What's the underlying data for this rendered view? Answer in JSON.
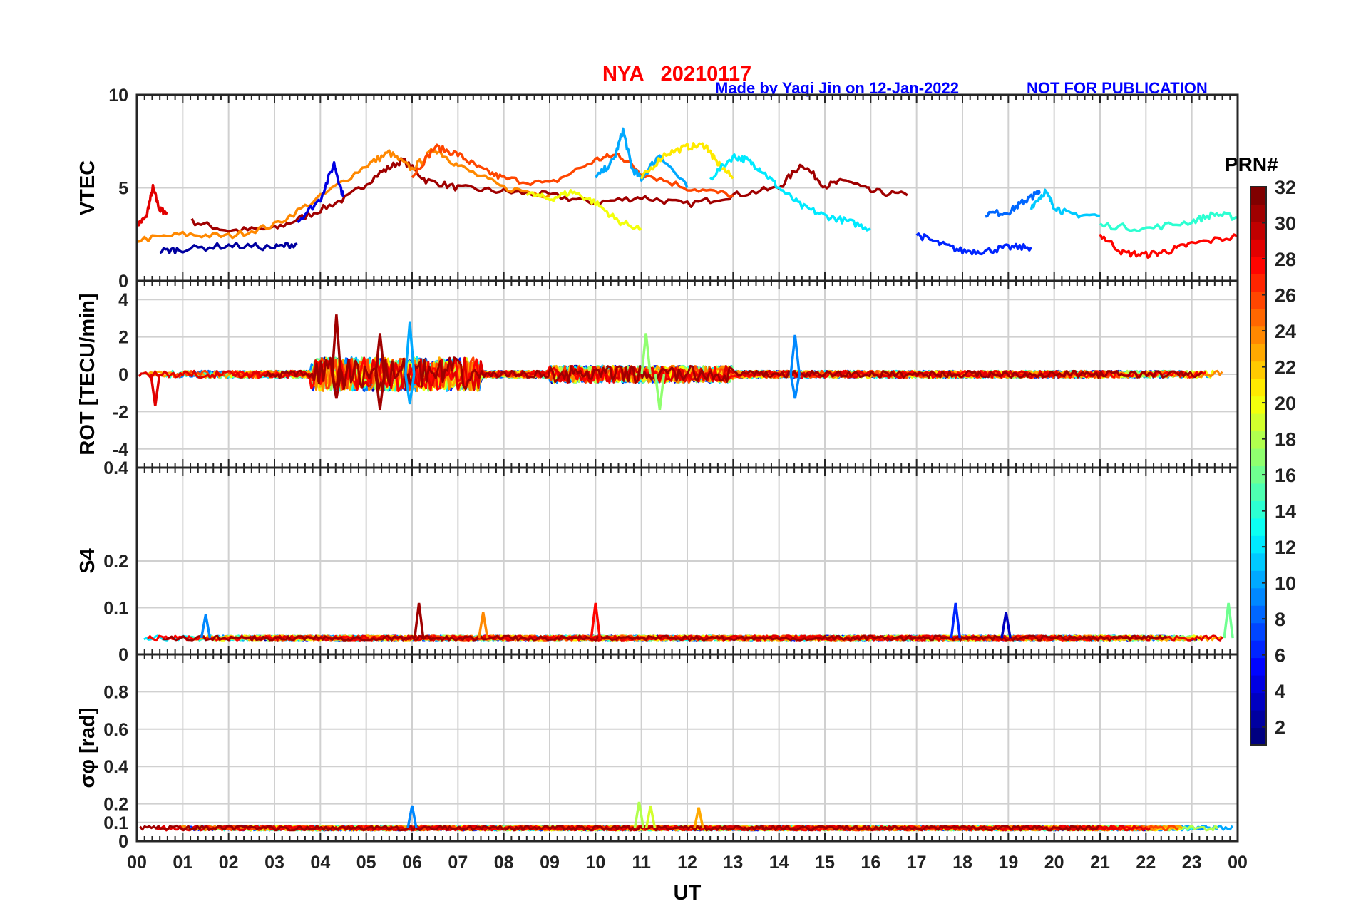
{
  "header": {
    "title": "NYA   20210117",
    "credit": "Made by Yaqi Jin on 12-Jan-2022",
    "notice": "NOT FOR PUBLICATION"
  },
  "colorbar": {
    "label": "PRN#",
    "ticks": [
      "2",
      "4",
      "6",
      "8",
      "10",
      "12",
      "14",
      "16",
      "18",
      "20",
      "22",
      "24",
      "26",
      "28",
      "30",
      "32"
    ],
    "range": [
      1,
      32
    ],
    "colormap": "jet"
  },
  "xaxis": {
    "label": "UT",
    "ticks": [
      "00",
      "01",
      "02",
      "03",
      "04",
      "05",
      "06",
      "07",
      "08",
      "09",
      "10",
      "11",
      "12",
      "13",
      "14",
      "15",
      "16",
      "17",
      "18",
      "19",
      "20",
      "21",
      "22",
      "23",
      "00"
    ]
  },
  "chart_data": [
    {
      "type": "line",
      "ylabel": "VTEC",
      "ylim": [
        0,
        10
      ],
      "yticks": [
        "0",
        "5",
        "10"
      ],
      "grid": true,
      "x_range_hours": [
        0,
        24
      ],
      "series_note_values": "multiple PRN traces; values as hour/VTEC pairs",
      "series": [
        {
          "prn": 29,
          "x": [
            0.0,
            0.2,
            0.35,
            0.5,
            0.65
          ],
          "y": [
            3.0,
            3.4,
            5.0,
            3.8,
            3.7
          ]
        },
        {
          "prn": 31,
          "x": [
            1.2,
            2.0,
            3.0,
            3.8,
            4.6,
            5.3,
            5.8,
            6.3,
            7.0,
            8.0,
            9.0,
            10.0,
            11.0,
            12.0,
            13.0,
            14.0,
            14.5,
            15.0,
            15.5,
            16.0,
            16.8
          ],
          "y": [
            3.2,
            2.7,
            2.8,
            3.6,
            4.5,
            5.8,
            6.5,
            5.4,
            5.0,
            4.8,
            4.6,
            4.2,
            4.5,
            4.1,
            4.6,
            5.0,
            6.3,
            5.1,
            5.4,
            4.8,
            4.6
          ]
        },
        {
          "prn": 24,
          "x": [
            0.0,
            1.0,
            2.0,
            3.0,
            4.0,
            5.0,
            5.5,
            6.0,
            6.5,
            7.0,
            8.0,
            9.0
          ],
          "y": [
            2.2,
            2.5,
            2.4,
            3.0,
            4.5,
            6.2,
            6.9,
            6.0,
            7.1,
            6.2,
            5.0,
            4.6
          ]
        },
        {
          "prn": 26,
          "x": [
            6.0,
            6.5,
            7.0,
            7.5,
            8.0,
            9.0,
            10.0,
            10.5,
            11.0,
            12.0,
            13.0
          ],
          "y": [
            5.6,
            7.2,
            6.8,
            6.0,
            5.5,
            5.2,
            6.5,
            6.8,
            5.8,
            5.0,
            4.6
          ]
        },
        {
          "prn": 10,
          "x": [
            10.0,
            10.4,
            10.6,
            10.8,
            11.0,
            11.4,
            12.0
          ],
          "y": [
            5.5,
            6.5,
            8.1,
            6.0,
            5.5,
            6.8,
            5.0
          ]
        },
        {
          "prn": 21,
          "x": [
            11.0,
            11.5,
            12.0,
            12.4,
            12.6,
            13.0
          ],
          "y": [
            5.5,
            6.8,
            7.2,
            7.3,
            6.5,
            5.5
          ]
        },
        {
          "prn": 12,
          "x": [
            12.5,
            13.0,
            13.3,
            13.6,
            14.0,
            14.5,
            15.0,
            15.5,
            16.0
          ],
          "y": [
            5.5,
            6.7,
            6.5,
            6.0,
            5.0,
            4.0,
            3.5,
            3.2,
            2.8
          ]
        },
        {
          "prn": 4,
          "x": [
            3.5,
            4.0,
            4.3,
            4.5
          ],
          "y": [
            3.2,
            4.4,
            6.3,
            4.5
          ]
        },
        {
          "prn": 8,
          "x": [
            18.5,
            19.0,
            19.3,
            19.5,
            19.7
          ],
          "y": [
            3.6,
            3.7,
            4.2,
            4.5,
            4.8
          ]
        },
        {
          "prn": 11,
          "x": [
            19.5,
            19.8,
            20.0,
            20.3,
            21.0
          ],
          "y": [
            4.0,
            4.8,
            4.0,
            3.6,
            3.5
          ]
        },
        {
          "prn": 14,
          "x": [
            21.0,
            22.0,
            23.0,
            23.5,
            24.0
          ],
          "y": [
            3.0,
            2.8,
            3.2,
            3.6,
            3.4
          ]
        },
        {
          "prn": 28,
          "x": [
            21.0,
            21.5,
            22.0,
            22.5,
            23.0,
            24.0
          ],
          "y": [
            2.5,
            1.5,
            1.4,
            1.6,
            2.0,
            2.4
          ]
        },
        {
          "prn": 2,
          "x": [
            0.5,
            1.0,
            2.0,
            3.0,
            3.5
          ],
          "y": [
            1.6,
            1.7,
            1.9,
            1.8,
            2.0
          ]
        },
        {
          "prn": 6,
          "x": [
            17.0,
            17.5,
            18.0,
            18.5,
            19.0,
            19.5
          ],
          "y": [
            2.5,
            2.0,
            1.6,
            1.6,
            1.8,
            1.8
          ]
        },
        {
          "prn": 20,
          "x": [
            8.5,
            9.0,
            9.5,
            10.0,
            10.5,
            11.0
          ],
          "y": [
            4.7,
            4.4,
            4.8,
            4.2,
            3.2,
            2.8
          ]
        }
      ]
    },
    {
      "type": "line",
      "ylabel": "ROT [TECU/min]",
      "ylim": [
        -5,
        5
      ],
      "yticks": [
        "4",
        "2",
        "0",
        "-2",
        "-4"
      ],
      "grid": true,
      "x_range_hours": [
        0,
        24
      ],
      "spikes": [
        {
          "prn": 31,
          "x": 4.35,
          "y": 3.2
        },
        {
          "prn": 31,
          "x": 4.35,
          "y": -1.3
        },
        {
          "prn": 29,
          "x": 0.4,
          "y": -1.7
        },
        {
          "prn": 31,
          "x": 5.3,
          "y": 2.2
        },
        {
          "prn": 31,
          "x": 5.3,
          "y": -1.9
        },
        {
          "prn": 10,
          "x": 5.95,
          "y": 2.8
        },
        {
          "prn": 10,
          "x": 5.95,
          "y": -1.6
        },
        {
          "prn": 17,
          "x": 11.1,
          "y": 2.2
        },
        {
          "prn": 17,
          "x": 11.4,
          "y": -1.9
        },
        {
          "prn": 9,
          "x": 14.35,
          "y": 2.1
        },
        {
          "prn": 9,
          "x": 14.35,
          "y": -1.3
        }
      ]
    },
    {
      "type": "line",
      "ylabel": "S4",
      "ylim": [
        0,
        0.4
      ],
      "yticks": [
        "0.4",
        "0.2",
        "0.1",
        "0"
      ],
      "grid": true,
      "x_range_hours": [
        0,
        24
      ],
      "baseline": 0.035,
      "spikes": [
        {
          "prn": 31,
          "x": 6.15,
          "y": 0.11
        },
        {
          "prn": 28,
          "x": 10.0,
          "y": 0.11
        },
        {
          "prn": 24,
          "x": 7.55,
          "y": 0.09
        },
        {
          "prn": 6,
          "x": 17.85,
          "y": 0.11
        },
        {
          "prn": 3,
          "x": 18.95,
          "y": 0.09
        },
        {
          "prn": 9,
          "x": 1.5,
          "y": 0.085
        },
        {
          "prn": 16,
          "x": 23.8,
          "y": 0.11
        }
      ]
    },
    {
      "type": "line",
      "ylabel": "σφ [rad]",
      "ylim": [
        0,
        1
      ],
      "yticks": [
        "0.8",
        "0.6",
        "0.4",
        "0.2",
        "0.1",
        "0"
      ],
      "grid": true,
      "x_range_hours": [
        0,
        24
      ],
      "baseline": 0.07,
      "spikes": [
        {
          "prn": 9,
          "x": 6.0,
          "y": 0.19
        },
        {
          "prn": 18,
          "x": 10.95,
          "y": 0.21
        },
        {
          "prn": 19,
          "x": 11.2,
          "y": 0.19
        },
        {
          "prn": 23,
          "x": 12.25,
          "y": 0.18
        }
      ]
    }
  ]
}
